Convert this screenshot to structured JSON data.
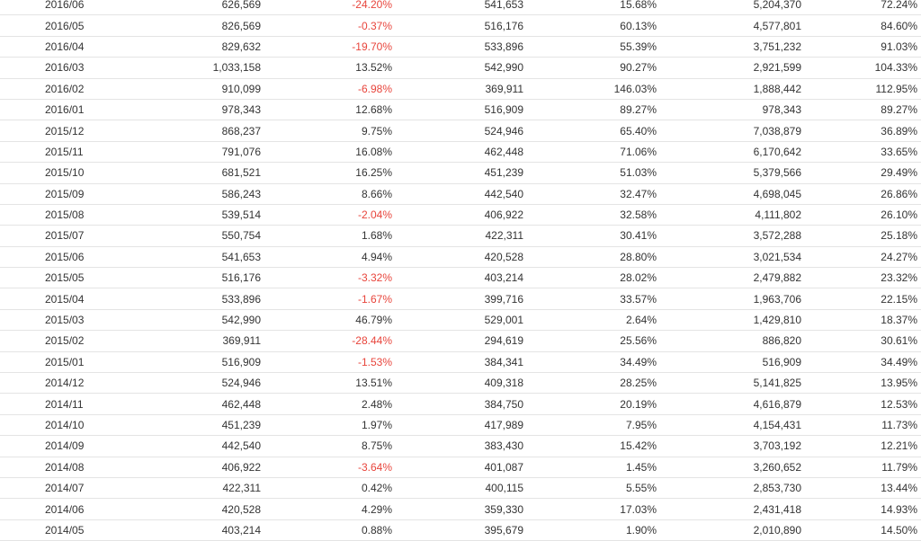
{
  "table": {
    "rows": [
      [
        "2016/06",
        "626,569",
        "-24.20%",
        "541,653",
        "15.68%",
        "5,204,370",
        "72.24%"
      ],
      [
        "2016/05",
        "826,569",
        "-0.37%",
        "516,176",
        "60.13%",
        "4,577,801",
        "84.60%"
      ],
      [
        "2016/04",
        "829,632",
        "-19.70%",
        "533,896",
        "55.39%",
        "3,751,232",
        "91.03%"
      ],
      [
        "2016/03",
        "1,033,158",
        "13.52%",
        "542,990",
        "90.27%",
        "2,921,599",
        "104.33%"
      ],
      [
        "2016/02",
        "910,099",
        "-6.98%",
        "369,911",
        "146.03%",
        "1,888,442",
        "112.95%"
      ],
      [
        "2016/01",
        "978,343",
        "12.68%",
        "516,909",
        "89.27%",
        "978,343",
        "89.27%"
      ],
      [
        "2015/12",
        "868,237",
        "9.75%",
        "524,946",
        "65.40%",
        "7,038,879",
        "36.89%"
      ],
      [
        "2015/11",
        "791,076",
        "16.08%",
        "462,448",
        "71.06%",
        "6,170,642",
        "33.65%"
      ],
      [
        "2015/10",
        "681,521",
        "16.25%",
        "451,239",
        "51.03%",
        "5,379,566",
        "29.49%"
      ],
      [
        "2015/09",
        "586,243",
        "8.66%",
        "442,540",
        "32.47%",
        "4,698,045",
        "26.86%"
      ],
      [
        "2015/08",
        "539,514",
        "-2.04%",
        "406,922",
        "32.58%",
        "4,111,802",
        "26.10%"
      ],
      [
        "2015/07",
        "550,754",
        "1.68%",
        "422,311",
        "30.41%",
        "3,572,288",
        "25.18%"
      ],
      [
        "2015/06",
        "541,653",
        "4.94%",
        "420,528",
        "28.80%",
        "3,021,534",
        "24.27%"
      ],
      [
        "2015/05",
        "516,176",
        "-3.32%",
        "403,214",
        "28.02%",
        "2,479,882",
        "23.32%"
      ],
      [
        "2015/04",
        "533,896",
        "-1.67%",
        "399,716",
        "33.57%",
        "1,963,706",
        "22.15%"
      ],
      [
        "2015/03",
        "542,990",
        "46.79%",
        "529,001",
        "2.64%",
        "1,429,810",
        "18.37%"
      ],
      [
        "2015/02",
        "369,911",
        "-28.44%",
        "294,619",
        "25.56%",
        "886,820",
        "30.61%"
      ],
      [
        "2015/01",
        "516,909",
        "-1.53%",
        "384,341",
        "34.49%",
        "516,909",
        "34.49%"
      ],
      [
        "2014/12",
        "524,946",
        "13.51%",
        "409,318",
        "28.25%",
        "5,141,825",
        "13.95%"
      ],
      [
        "2014/11",
        "462,448",
        "2.48%",
        "384,750",
        "20.19%",
        "4,616,879",
        "12.53%"
      ],
      [
        "2014/10",
        "451,239",
        "1.97%",
        "417,989",
        "7.95%",
        "4,154,431",
        "11.73%"
      ],
      [
        "2014/09",
        "442,540",
        "8.75%",
        "383,430",
        "15.42%",
        "3,703,192",
        "12.21%"
      ],
      [
        "2014/08",
        "406,922",
        "-3.64%",
        "401,087",
        "1.45%",
        "3,260,652",
        "11.79%"
      ],
      [
        "2014/07",
        "422,311",
        "0.42%",
        "400,115",
        "5.55%",
        "2,853,730",
        "13.44%"
      ],
      [
        "2014/06",
        "420,528",
        "4.29%",
        "359,330",
        "17.03%",
        "2,431,418",
        "14.93%"
      ],
      [
        "2014/05",
        "403,214",
        "0.88%",
        "395,679",
        "1.90%",
        "2,010,890",
        "14.50%"
      ]
    ]
  },
  "colors": {
    "text": "#333333",
    "negative": "#e8453c",
    "row_border": "#e4e4e4"
  }
}
